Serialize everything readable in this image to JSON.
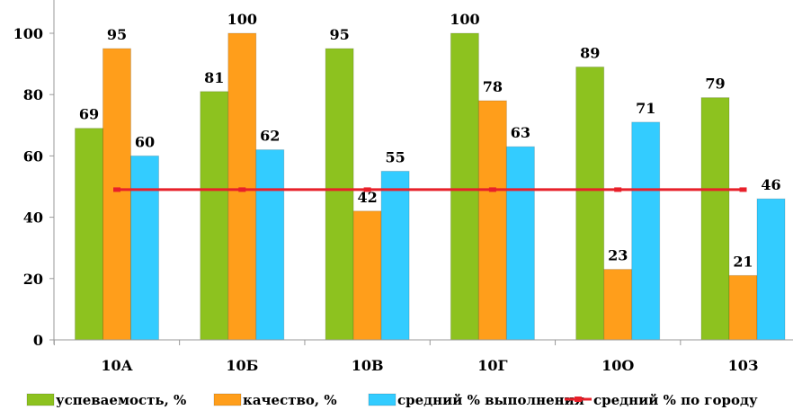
{
  "chart_data": {
    "type": "bar",
    "categories": [
      "10А",
      "10Б",
      "10В",
      "10Г",
      "10О",
      "10З"
    ],
    "series": [
      {
        "name": "успеваемость, %",
        "values": [
          69,
          81,
          95,
          100,
          89,
          79
        ],
        "color": "#8DC21F"
      },
      {
        "name": "качество, %",
        "values": [
          95,
          100,
          42,
          78,
          23,
          21
        ],
        "color": "#FF9E1B"
      },
      {
        "name": "средний % выполнения",
        "values": [
          60,
          62,
          55,
          63,
          71,
          46
        ],
        "color": "#33CCFF"
      }
    ],
    "line_series": {
      "name": "средний % по городу",
      "values": [
        49,
        49,
        49,
        49,
        49,
        49
      ],
      "color": "#E8202A"
    },
    "ylim": [
      0,
      100
    ],
    "y_ticks": [
      0,
      20,
      40,
      60,
      80,
      100
    ],
    "legend_position": "bottom",
    "data_labels": true
  }
}
